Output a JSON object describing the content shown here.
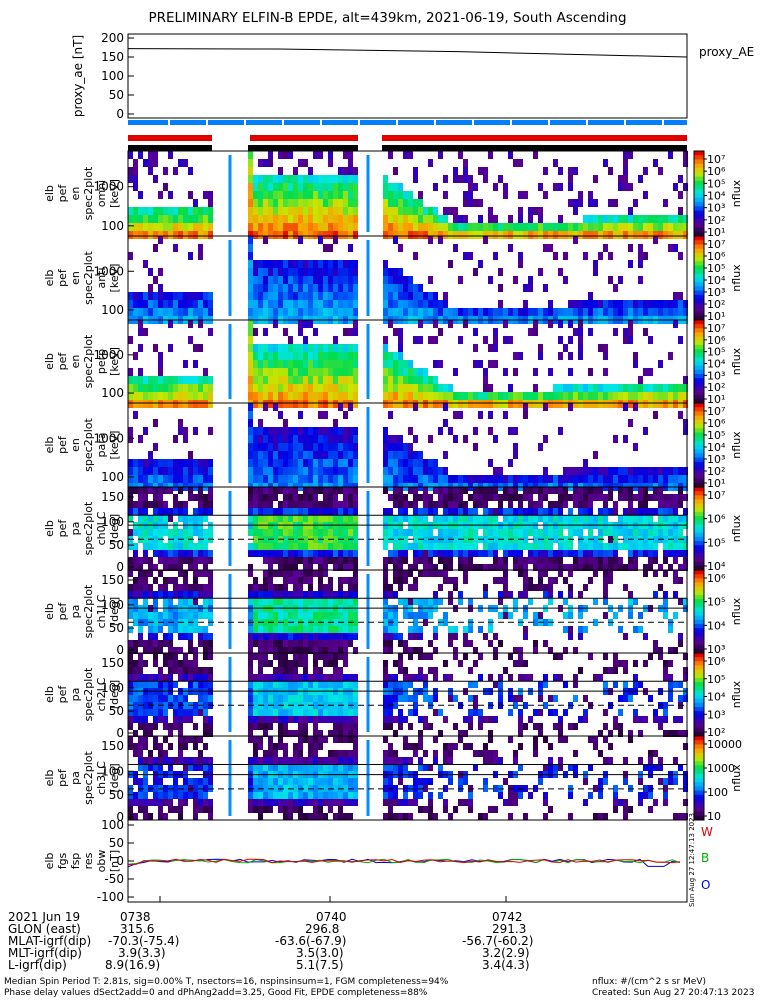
{
  "title": "PRELIMINARY ELFIN-B EPDE, alt=439km, 2021-06-19, South Ascending",
  "chart_data": [
    {
      "type": "line",
      "ylabel": "proxy_ae [nT]",
      "legend": "proxy_AE",
      "ylim": [
        0,
        200
      ],
      "yticks": [
        "200",
        "150",
        "100",
        "50",
        "0"
      ],
      "x": [
        "07:37:30",
        "07:43:30"
      ],
      "series": [
        {
          "values": [
            172,
            150
          ]
        }
      ]
    },
    {
      "type": "heatmap",
      "ylabel_lines": [
        "elb",
        "pef",
        "en",
        "spec2plot",
        "omni",
        "[keV]"
      ],
      "yticks": [
        "1000",
        "100"
      ],
      "colorbar": {
        "label": "nflux",
        "ticks": [
          "10⁷",
          "10⁶",
          "10⁵",
          "10⁴",
          "10³",
          "10²",
          "10¹"
        ]
      }
    },
    {
      "type": "heatmap",
      "ylabel_lines": [
        "elb",
        "pef",
        "en",
        "spec2plot",
        "anti",
        "[keV]"
      ],
      "yticks": [
        "1000",
        "100"
      ],
      "colorbar": {
        "label": "nflux",
        "ticks": [
          "10⁷",
          "10⁶",
          "10⁵",
          "10⁴",
          "10³",
          "10²",
          "10¹"
        ]
      }
    },
    {
      "type": "heatmap",
      "ylabel_lines": [
        "elb",
        "pef",
        "en",
        "spec2plot",
        "perp",
        "[keV]"
      ],
      "yticks": [
        "1000",
        "100"
      ],
      "colorbar": {
        "label": "nflux",
        "ticks": [
          "10⁷",
          "10⁶",
          "10⁵",
          "10⁴",
          "10³",
          "10²",
          "10¹"
        ]
      }
    },
    {
      "type": "heatmap",
      "ylabel_lines": [
        "elb",
        "pef",
        "en",
        "spec2plot",
        "para",
        "[keV]"
      ],
      "yticks": [
        "1000",
        "100"
      ],
      "colorbar": {
        "label": "nflux",
        "ticks": [
          "10⁷",
          "10⁶",
          "10⁵",
          "10⁴",
          "10³",
          "10²",
          "10¹"
        ]
      }
    },
    {
      "type": "heatmap",
      "ylabel_lines": [
        "elb",
        "pef",
        "pa",
        "spec2plot",
        "ch0LC",
        "[deg]"
      ],
      "yticks": [
        "150",
        "100",
        "50",
        "0"
      ],
      "colorbar": {
        "label": "nflux",
        "ticks": [
          "10⁷",
          "10⁶",
          "10⁵",
          "10⁴"
        ]
      }
    },
    {
      "type": "heatmap",
      "ylabel_lines": [
        "elb",
        "pef",
        "pa",
        "spec2plot",
        "ch1LC",
        "[deg]"
      ],
      "yticks": [
        "150",
        "100",
        "50",
        "0"
      ],
      "colorbar": {
        "label": "nflux",
        "ticks": [
          "10⁶",
          "10⁵",
          "10⁴",
          "10³"
        ]
      }
    },
    {
      "type": "heatmap",
      "ylabel_lines": [
        "elb",
        "pef",
        "pa",
        "spec2plot",
        "ch2LC",
        "[deg]"
      ],
      "yticks": [
        "150",
        "100",
        "50",
        "0"
      ],
      "colorbar": {
        "label": "nflux",
        "ticks": [
          "10⁶",
          "10⁵",
          "10⁴",
          "10³",
          "10²"
        ]
      }
    },
    {
      "type": "heatmap",
      "ylabel_lines": [
        "elb",
        "pef",
        "pa",
        "spec2plot",
        "ch3LC",
        "[deg]"
      ],
      "yticks": [
        "150",
        "100",
        "50",
        "0"
      ],
      "colorbar": {
        "label": "nflux",
        "ticks": [
          "10000",
          "1000",
          "100",
          "10"
        ]
      }
    },
    {
      "type": "line",
      "ylabel_lines": [
        "elb",
        "fgs",
        "fsp",
        "res",
        "obw",
        "[nT]"
      ],
      "yticks": [
        "100",
        "50",
        "0",
        "-50",
        "-100"
      ],
      "ylim": [
        -100,
        100
      ],
      "legend": [
        "W",
        "B",
        "O"
      ]
    }
  ],
  "colors": {
    "W": "#e00000",
    "B": "#00b000",
    "O": "#0000e0",
    "red_bar": "#e00000",
    "blue_bar": "#0080ff"
  },
  "time_ticks": [
    "0740",
    "0742"
  ],
  "footer": {
    "left_rows": [
      {
        "label": "2021 Jun 19",
        "v1": "0738",
        "v2": "0740",
        "v3": "0742"
      },
      {
        "label": "GLON (east)",
        "v1": "315.6",
        "v2": "296.8",
        "v3": "291.3"
      },
      {
        "label": "MLAT-igrf(dip)",
        "v1": "-70.3(-75.4)",
        "v2": "-63.6(-67.9)",
        "v3": "-56.7(-60.2)"
      },
      {
        "label": "MLT-igrf(dip)",
        "v1": "3.9(3.3)",
        "v2": "3.5(3.0)",
        "v3": "3.2(2.9)"
      },
      {
        "label": "L-igrf(dip)",
        "v1": "8.9(16.9)",
        "v2": "5.1(7.5)",
        "v3": "3.4(4.3)"
      }
    ],
    "line1": "Median Spin Period T: 2.81s, sig=0.00% T, nsectors=16, nspinsinsum=1, FGM completeness=94%",
    "line2": "Phase delay values dSect2add=0 and dPhAng2add=3.25, Good Fit, EPDE completeness=88%",
    "nflux_def": "nflux: #/(cm^2 s sr MeV)",
    "created": "Created: Sun Aug 27 20:47:13 2023",
    "side_stamp": "Sun Aug 27 12:47:13 2023"
  }
}
